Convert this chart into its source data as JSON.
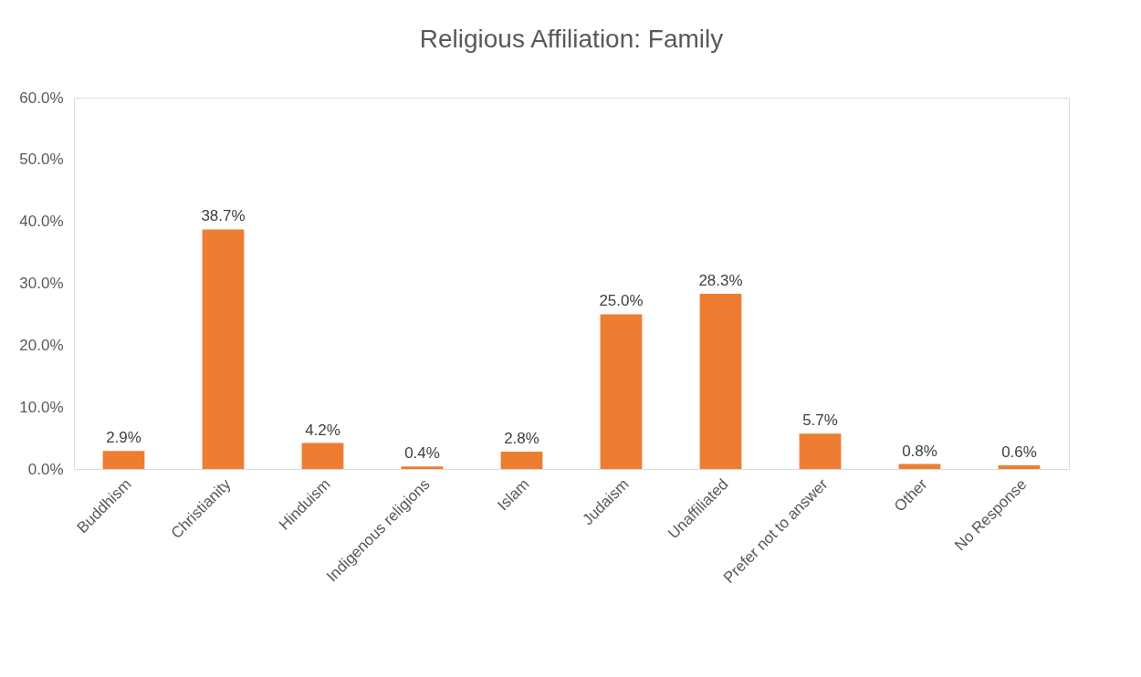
{
  "chart_data": {
    "type": "bar",
    "title": "Religious Affiliation: Family",
    "categories": [
      "Buddhism",
      "Christianity",
      "Hinduism",
      "Indigenous religions",
      "Islam",
      "Judaism",
      "Unaffiliated",
      "Prefer not to answer",
      "Other",
      "No Response"
    ],
    "values": [
      2.9,
      38.7,
      4.2,
      0.4,
      2.8,
      25.0,
      28.3,
      5.7,
      0.8,
      0.6
    ],
    "value_labels": [
      "2.9%",
      "38.7%",
      "4.2%",
      "0.4%",
      "2.8%",
      "25.0%",
      "28.3%",
      "5.7%",
      "0.8%",
      "0.6%"
    ],
    "color": "#ed7d31",
    "ylim": [
      0,
      60
    ],
    "yticks": [
      {
        "value": 0,
        "label": "0.0%"
      },
      {
        "value": 10,
        "label": "10.0%"
      },
      {
        "value": 20,
        "label": "20.0%"
      },
      {
        "value": 30,
        "label": "30.0%"
      },
      {
        "value": 40,
        "label": "40.0%"
      },
      {
        "value": 50,
        "label": "50.0%"
      },
      {
        "value": 60,
        "label": "60.0%"
      }
    ],
    "grid": false
  }
}
